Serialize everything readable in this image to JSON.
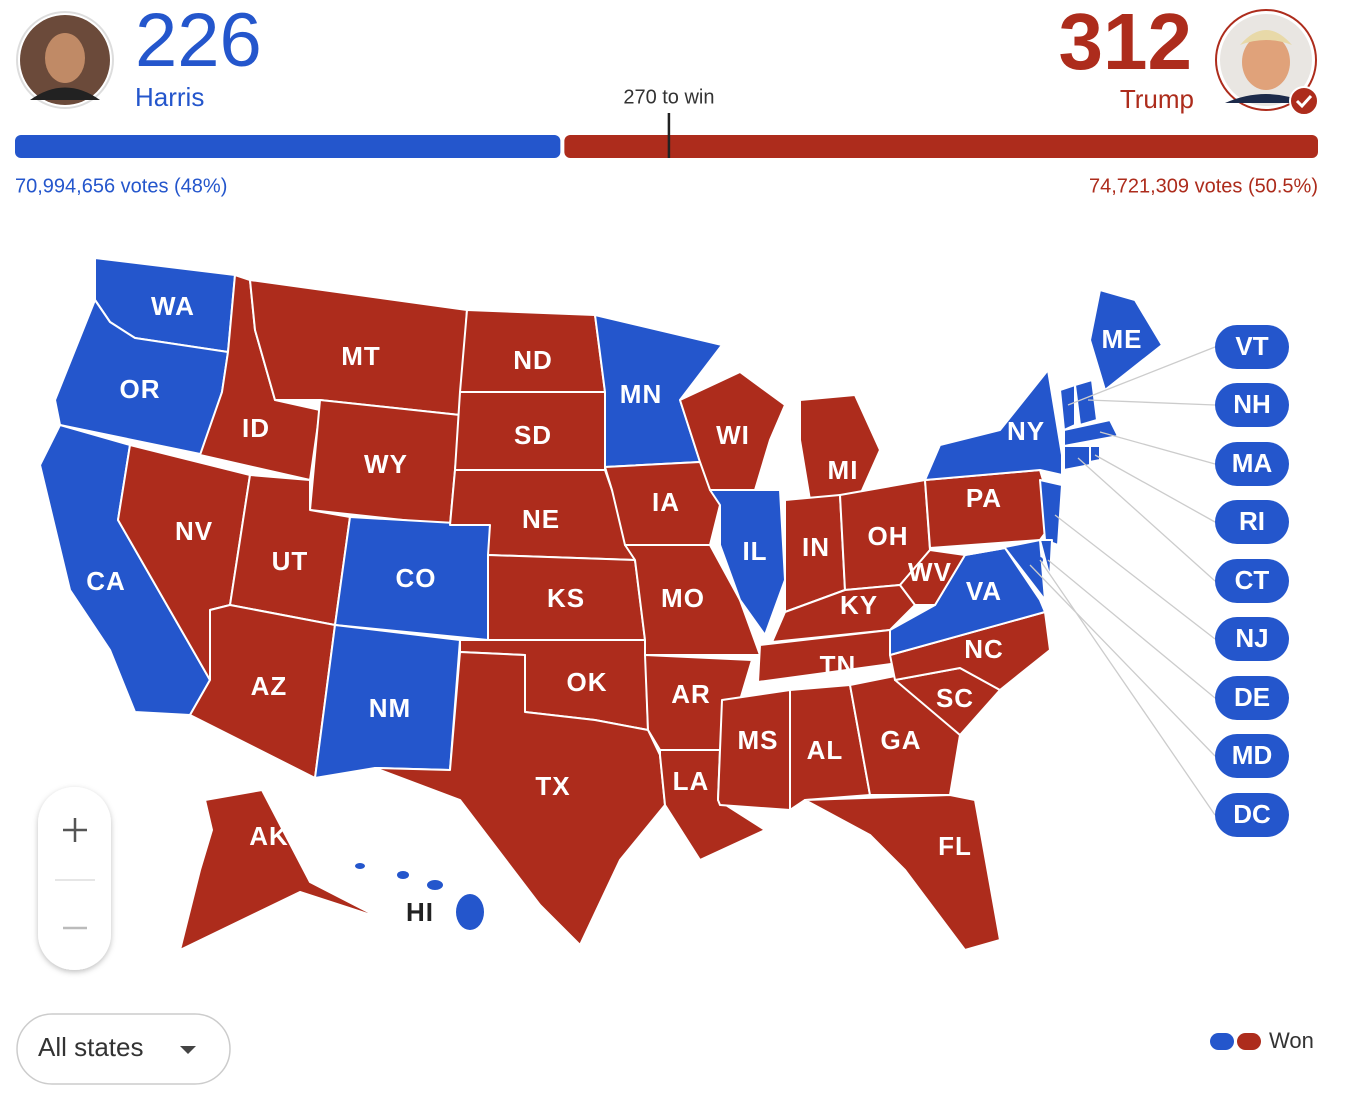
{
  "candidates": [
    {
      "name": "Harris",
      "electoral_votes": 226,
      "votes": "70,994,656 votes (48%)",
      "color": "#2456cc"
    },
    {
      "name": "Trump",
      "electoral_votes": 312,
      "votes": "74,721,309 votes (50.5%)",
      "color": "#ad2c1c"
    }
  ],
  "threshold": {
    "value": 270,
    "label": "270 to win"
  },
  "states": [
    {
      "abbr": "WA",
      "winner": "Harris"
    },
    {
      "abbr": "OR",
      "winner": "Harris"
    },
    {
      "abbr": "CA",
      "winner": "Harris"
    },
    {
      "abbr": "ID",
      "winner": "Trump"
    },
    {
      "abbr": "NV",
      "winner": "Trump"
    },
    {
      "abbr": "MT",
      "winner": "Trump"
    },
    {
      "abbr": "WY",
      "winner": "Trump"
    },
    {
      "abbr": "UT",
      "winner": "Trump"
    },
    {
      "abbr": "CO",
      "winner": "Harris"
    },
    {
      "abbr": "AZ",
      "winner": "Trump"
    },
    {
      "abbr": "NM",
      "winner": "Harris"
    },
    {
      "abbr": "ND",
      "winner": "Trump"
    },
    {
      "abbr": "SD",
      "winner": "Trump"
    },
    {
      "abbr": "NE",
      "winner": "Trump"
    },
    {
      "abbr": "KS",
      "winner": "Trump"
    },
    {
      "abbr": "OK",
      "winner": "Trump"
    },
    {
      "abbr": "TX",
      "winner": "Trump"
    },
    {
      "abbr": "MN",
      "winner": "Harris"
    },
    {
      "abbr": "IA",
      "winner": "Trump"
    },
    {
      "abbr": "MO",
      "winner": "Trump"
    },
    {
      "abbr": "AR",
      "winner": "Trump"
    },
    {
      "abbr": "LA",
      "winner": "Trump"
    },
    {
      "abbr": "WI",
      "winner": "Trump"
    },
    {
      "abbr": "IL",
      "winner": "Harris"
    },
    {
      "abbr": "MI",
      "winner": "Trump"
    },
    {
      "abbr": "IN",
      "winner": "Trump"
    },
    {
      "abbr": "OH",
      "winner": "Trump"
    },
    {
      "abbr": "KY",
      "winner": "Trump"
    },
    {
      "abbr": "TN",
      "winner": "Trump"
    },
    {
      "abbr": "MS",
      "winner": "Trump"
    },
    {
      "abbr": "AL",
      "winner": "Trump"
    },
    {
      "abbr": "GA",
      "winner": "Trump"
    },
    {
      "abbr": "FL",
      "winner": "Trump"
    },
    {
      "abbr": "SC",
      "winner": "Trump"
    },
    {
      "abbr": "NC",
      "winner": "Trump"
    },
    {
      "abbr": "VA",
      "winner": "Harris"
    },
    {
      "abbr": "WV",
      "winner": "Trump"
    },
    {
      "abbr": "PA",
      "winner": "Trump"
    },
    {
      "abbr": "NY",
      "winner": "Harris"
    },
    {
      "abbr": "NJ",
      "winner": "Harris"
    },
    {
      "abbr": "ME",
      "winner": "Harris"
    },
    {
      "abbr": "MD",
      "winner": "Harris"
    },
    {
      "abbr": "DE",
      "winner": "Harris"
    },
    {
      "abbr": "VT",
      "winner": "Harris"
    },
    {
      "abbr": "NH",
      "winner": "Harris"
    },
    {
      "abbr": "MA",
      "winner": "Harris"
    },
    {
      "abbr": "CT",
      "winner": "Harris"
    },
    {
      "abbr": "RI",
      "winner": "Harris"
    },
    {
      "abbr": "AK",
      "winner": "Trump"
    },
    {
      "abbr": "HI",
      "winner": "Harris"
    },
    {
      "abbr": "DC",
      "winner": "Harris"
    }
  ],
  "filter": "All states",
  "legend": "Won"
}
